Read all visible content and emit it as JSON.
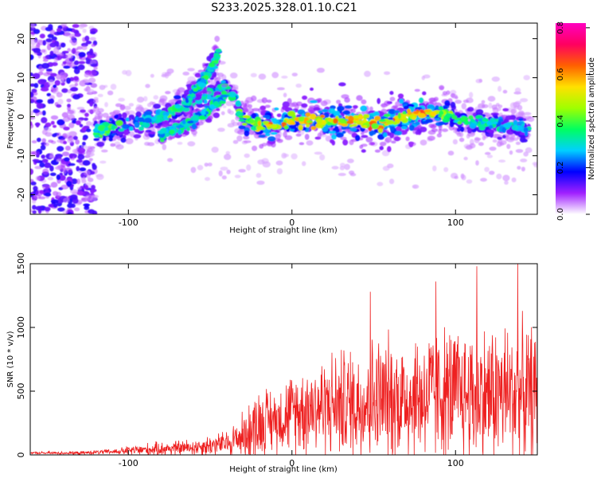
{
  "figure_title": "S233.2025.328.01.10.C21",
  "chart_data": [
    {
      "type": "heatmap",
      "title": "S233.2025.328.01.10.C21",
      "xlabel": "Height of straight line (km)",
      "ylabel": "Frequency (Hz)",
      "xlim": [
        -160,
        150
      ],
      "ylim": [
        -25,
        24
      ],
      "xticks": [
        -100,
        0,
        100
      ],
      "yticks": [
        -20,
        -10,
        0,
        10,
        20
      ],
      "colorbar": {
        "label": "Normalized spectral amplitude",
        "range": [
          0,
          0.82
        ],
        "ticks": [
          "0.0",
          "0.2",
          "0.4",
          "0.6",
          "0.8"
        ],
        "colormap": [
          "#ffffff",
          "#a020ff",
          "#0000ff",
          "#00d0ff",
          "#00ff60",
          "#a0ff00",
          "#ffe000",
          "#ff6000",
          "#ff0060",
          "#ff00c0"
        ]
      },
      "ridge": {
        "x": [
          -120,
          -110,
          -100,
          -90,
          -80,
          -70,
          -60,
          -50,
          -40,
          -35,
          -30,
          -20,
          -10,
          0,
          10,
          20,
          30,
          40,
          50,
          60,
          70,
          80,
          90,
          100,
          110,
          120,
          130,
          145
        ],
        "freq": [
          -3,
          -3,
          -2,
          -1,
          0,
          2,
          4,
          6,
          8,
          5,
          -1,
          -2,
          -2,
          -1,
          -1,
          -1,
          -1,
          -1,
          -2,
          -1,
          0,
          1,
          1,
          0,
          -1,
          -2,
          -2,
          -3
        ],
        "peak": [
          0.35,
          0.45,
          0.3,
          0.3,
          0.35,
          0.4,
          0.3,
          0.3,
          0.35,
          0.3,
          0.45,
          0.5,
          0.6,
          0.55,
          0.6,
          0.55,
          0.6,
          0.55,
          0.6,
          0.6,
          0.55,
          0.65,
          0.5,
          0.4,
          0.35,
          0.35,
          0.3,
          0.3
        ]
      },
      "branches": [
        {
          "x": [
            -80,
            -70,
            -60,
            -50,
            -45,
            -40
          ],
          "freq": [
            -5,
            -3,
            -1,
            2,
            4,
            6
          ]
        },
        {
          "x": [
            -65,
            -60,
            -55,
            -50,
            -45
          ],
          "freq": [
            3,
            6,
            9,
            12,
            16
          ]
        }
      ]
    },
    {
      "type": "line",
      "xlabel": "Height of straight line (km)",
      "ylabel": "SNR (10 * v/v)",
      "xlim": [
        -160,
        150
      ],
      "ylim": [
        0,
        1500
      ],
      "xticks": [
        -100,
        0,
        100
      ],
      "yticks": [
        0,
        500,
        1000,
        1500
      ],
      "color": "#ee2020",
      "envelope": {
        "x": [
          -160,
          -130,
          -110,
          -90,
          -60,
          -40,
          -30,
          -20,
          -10,
          0,
          10,
          30,
          50,
          70,
          90,
          110,
          130,
          150
        ],
        "base": [
          15,
          15,
          25,
          40,
          60,
          90,
          150,
          250,
          280,
          330,
          380,
          400,
          430,
          450,
          480,
          470,
          480,
          470
        ],
        "amp": [
          12,
          15,
          25,
          60,
          80,
          120,
          220,
          350,
          300,
          380,
          450,
          520,
          600,
          620,
          640,
          650,
          680,
          650
        ]
      },
      "peaks": [
        {
          "x": 48,
          "y": 1280
        },
        {
          "x": 88,
          "y": 1360
        },
        {
          "x": 113,
          "y": 1480
        },
        {
          "x": 138,
          "y": 1500
        }
      ]
    }
  ]
}
